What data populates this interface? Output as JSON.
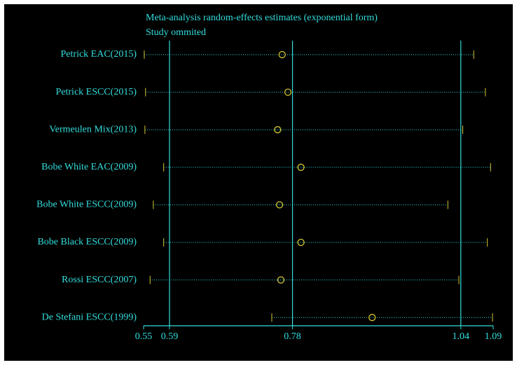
{
  "chart_data": {
    "type": "forest",
    "title": "Meta-analysis random-effects estimates (exponential form)",
    "subtitle": "Study ommited",
    "categories": [
      "Petrick EAC(2015)",
      "Petrick ESCC(2015)",
      "Vermeulen Mix(2013)",
      "Bobe White EAC(2009)",
      "Bobe White ESCC(2009)",
      "Bobe Black ESCC(2009)",
      "Rossi ESCC(2007)",
      "De Stefani ESCC(1999)"
    ],
    "estimates": [
      0.764,
      0.773,
      0.757,
      0.793,
      0.76,
      0.793,
      0.762,
      0.903
    ],
    "lower": [
      0.551,
      0.553,
      0.552,
      0.581,
      0.565,
      0.581,
      0.56,
      0.748
    ],
    "upper": [
      1.06,
      1.078,
      1.043,
      1.086,
      1.02,
      1.081,
      1.037,
      1.089
    ],
    "ref_lines": [
      0.59,
      0.78,
      1.04
    ],
    "xlim": [
      0.55,
      1.09
    ],
    "xticks": [
      0.55,
      0.59,
      0.78,
      1.04,
      1.09
    ],
    "text_color": "#33dddd",
    "marker_color": "#d4c832"
  }
}
